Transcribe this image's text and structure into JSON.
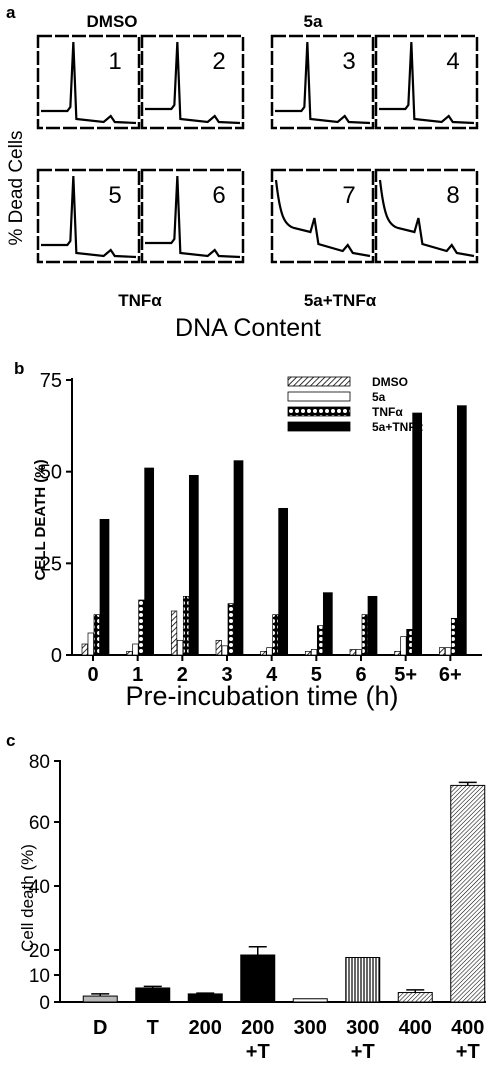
{
  "panel_a": {
    "letter": "a",
    "top_left_label": "DMSO",
    "top_right_label": "5a",
    "bottom_left_label": "TNFα",
    "bottom_right_label": "5a+TNFα",
    "ylabel": "% Dead Cells",
    "xlabel": "DNA Content",
    "histograms": [
      {
        "number": "1",
        "profile": "normal"
      },
      {
        "number": "2",
        "profile": "normal"
      },
      {
        "number": "3",
        "profile": "normal"
      },
      {
        "number": "4",
        "profile": "normal"
      },
      {
        "number": "5",
        "profile": "normal"
      },
      {
        "number": "6",
        "profile": "normal"
      },
      {
        "number": "7",
        "profile": "apoptotic"
      },
      {
        "number": "8",
        "profile": "apoptotic"
      }
    ]
  },
  "chart_data": [
    {
      "type": "bar",
      "panel": "b",
      "letter": "b",
      "categories": [
        "0",
        "1",
        "2",
        "3",
        "4",
        "5",
        "6",
        "5+",
        "6+"
      ],
      "xlabel": "Pre-incubation time (h)",
      "ylabel": "CELL DEATH (%)",
      "ylim": [
        0,
        75
      ],
      "yticks": [
        "0",
        "25",
        "50",
        "75"
      ],
      "legend_position": "top-right",
      "series": [
        {
          "name": "DMSO",
          "pattern": "hatch",
          "values": [
            3,
            1,
            12,
            4,
            1,
            1,
            1.5,
            1,
            2
          ]
        },
        {
          "name": "5a",
          "pattern": "open",
          "values": [
            6,
            3,
            4,
            2.5,
            2,
            1.5,
            1.5,
            5,
            2
          ]
        },
        {
          "name": "TNFα",
          "pattern": "dots",
          "values": [
            11,
            15,
            16,
            14,
            11,
            8,
            11,
            7,
            10
          ]
        },
        {
          "name": "5a+TNFα",
          "pattern": "solid",
          "values": [
            37,
            51,
            49,
            53,
            40,
            17,
            16,
            66,
            68
          ]
        }
      ]
    },
    {
      "type": "bar",
      "panel": "c",
      "letter": "c",
      "categories": [
        {
          "line1": "D",
          "line2": ""
        },
        {
          "line1": "T",
          "line2": ""
        },
        {
          "line1": "200",
          "line2": ""
        },
        {
          "line1": "200",
          "line2": "+T"
        },
        {
          "line1": "300",
          "line2": ""
        },
        {
          "line1": "300",
          "line2": "+T"
        },
        {
          "line1": "400",
          "line2": ""
        },
        {
          "line1": "400",
          "line2": "+T"
        }
      ],
      "ylabel": "Cell death (%)",
      "ylim": [
        0,
        80
      ],
      "yticks": [
        "0",
        "10",
        "20",
        "40",
        "60",
        "80"
      ],
      "values": [
        2.2,
        5.2,
        3,
        18,
        1.2,
        17,
        3.5,
        72
      ],
      "errors": [
        0.8,
        0.6,
        0.3,
        3,
        0,
        0,
        1,
        1
      ],
      "fills": [
        "#b8b8b8",
        "#000000",
        "#000000",
        "#000000",
        "#ffffff",
        "vstripe",
        "dhatch",
        "dhatch"
      ]
    }
  ]
}
